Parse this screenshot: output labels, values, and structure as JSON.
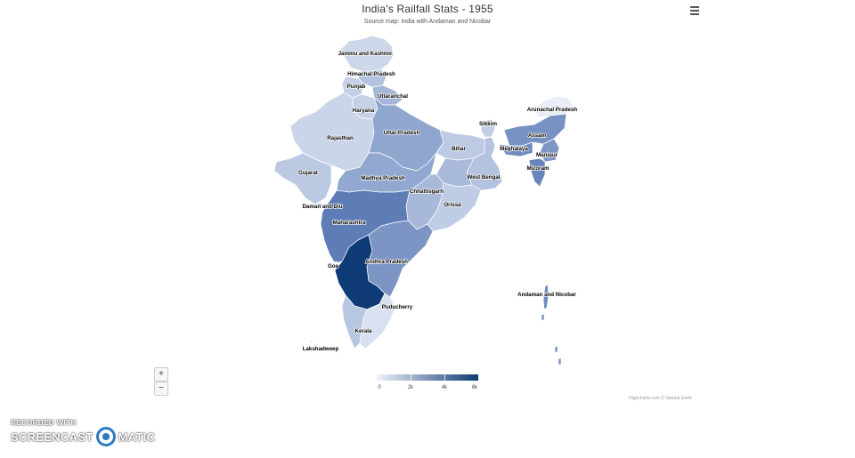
{
  "title": "India's Railfall Stats - 1955",
  "subtitle": "Source map: India with Andaman and Nicobar",
  "menu_icon": "hamburger-menu-icon",
  "zoom": {
    "in_label": "+",
    "out_label": "−"
  },
  "legend": {
    "labels": [
      "0",
      "2k",
      "4k",
      "6k"
    ],
    "min": 0,
    "max": 6000,
    "color_min": "#eef2fa",
    "color_max": "#0e3a75"
  },
  "credits": "Highcharts.com © Natural Earth",
  "watermark": {
    "line1": "RECORDED WITH",
    "left": "SCREENCAST",
    "right": "MATIC"
  },
  "regions": [
    {
      "name": "Jammu and Kashmir"
    },
    {
      "name": "Himachal Pradesh"
    },
    {
      "name": "Punjab"
    },
    {
      "name": "Uttaranchal"
    },
    {
      "name": "Haryana"
    },
    {
      "name": "Rajasthan"
    },
    {
      "name": "Uttar Pradesh"
    },
    {
      "name": "Bihar"
    },
    {
      "name": "Sikkim"
    },
    {
      "name": "Arunachal Pradesh"
    },
    {
      "name": "Assam"
    },
    {
      "name": "Meghalaya"
    },
    {
      "name": "Manipur"
    },
    {
      "name": "Mizoram"
    },
    {
      "name": "Gujarat"
    },
    {
      "name": "Madhya Pradesh"
    },
    {
      "name": "West Bengal"
    },
    {
      "name": "Chhattisgarh"
    },
    {
      "name": "Daman and Diu"
    },
    {
      "name": "Orissa"
    },
    {
      "name": "Maharashtra"
    },
    {
      "name": "Goa"
    },
    {
      "name": "Andhra Pradesh"
    },
    {
      "name": "Andaman and Nicobar"
    },
    {
      "name": "Puducherry"
    },
    {
      "name": "Kerala"
    },
    {
      "name": "Lakshadweep"
    }
  ]
}
